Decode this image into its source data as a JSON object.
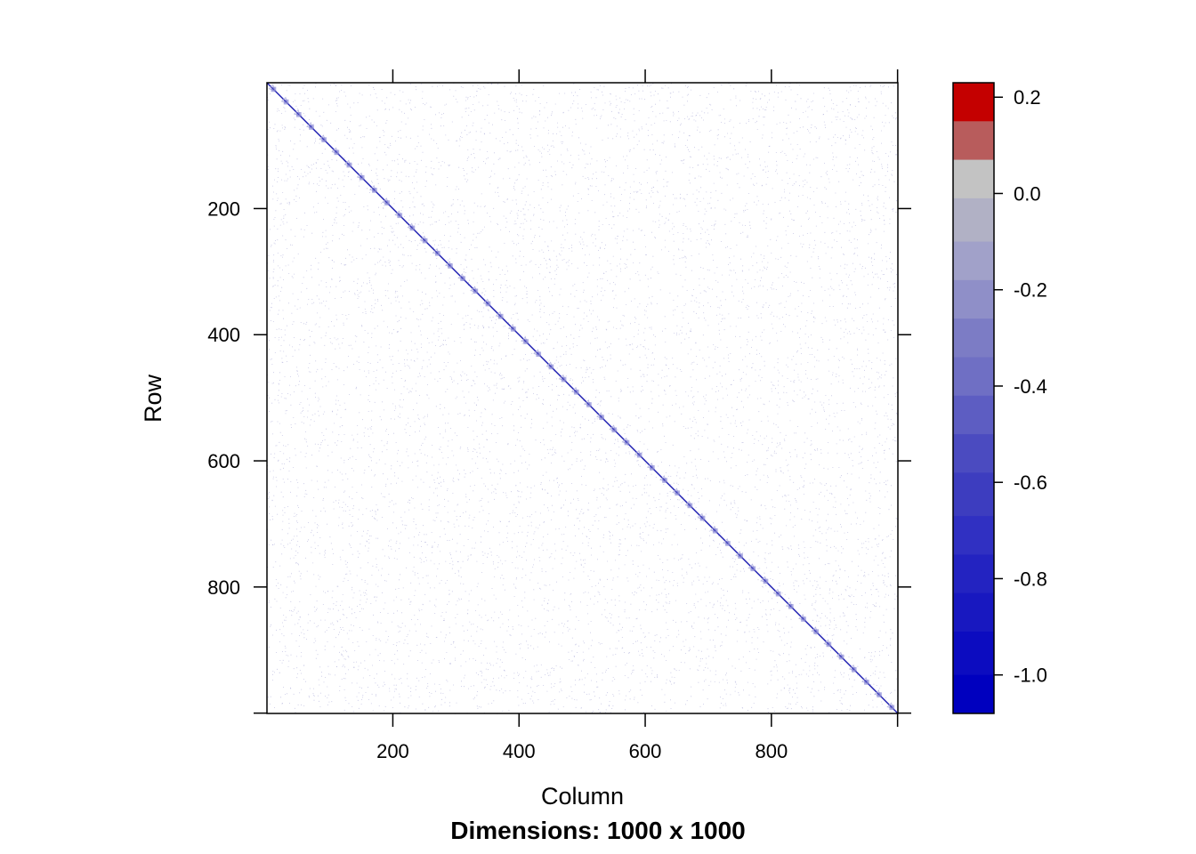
{
  "chart_data": {
    "type": "heatmap",
    "title": "",
    "subtitle": "Dimensions: 1000 x 1000",
    "xlabel": "Column",
    "ylabel": "Row",
    "nrows": 1000,
    "ncols": 1000,
    "xlim": [
      0.5,
      1000.5
    ],
    "ylim": [
      1000.5,
      0.5
    ],
    "x_ticks": [
      200,
      400,
      600,
      800
    ],
    "y_ticks": [
      200,
      400,
      600,
      800
    ],
    "x_tick_labels": [
      "200",
      "400",
      "600",
      "800"
    ],
    "y_tick_labels": [
      "200",
      "400",
      "600",
      "800"
    ],
    "diagonal": {
      "from": [
        1,
        1
      ],
      "to": [
        1000,
        1000
      ],
      "block_size": 20
    },
    "colorkey": {
      "range": [
        -1.08,
        0.23
      ],
      "ticks": [
        0.2,
        0.0,
        -0.2,
        -0.4,
        -0.6,
        -0.8,
        -1.0
      ],
      "tick_labels": [
        "0.2",
        "0.0",
        "-0.2",
        "-0.4",
        "-0.6",
        "-0.8",
        "-1.0"
      ],
      "breaks": [
        0.23,
        0.15,
        0.07,
        -0.01,
        -0.1,
        -0.18,
        -0.26,
        -0.34,
        -0.42,
        -0.5,
        -0.58,
        -0.67,
        -0.75,
        -0.83,
        -0.91,
        -1.0,
        -1.08
      ],
      "colors": [
        "#c40000",
        "#b85c5c",
        "#c3c3c3",
        "#b1b1c5",
        "#a1a1c9",
        "#8f8fc8",
        "#7c7cc5",
        "#6f6fc4",
        "#5d5dc2",
        "#4b4bc0",
        "#3d3dbf",
        "#3030c2",
        "#2323c1",
        "#1818c0",
        "#0c0cc0",
        "#0000bf"
      ]
    }
  }
}
